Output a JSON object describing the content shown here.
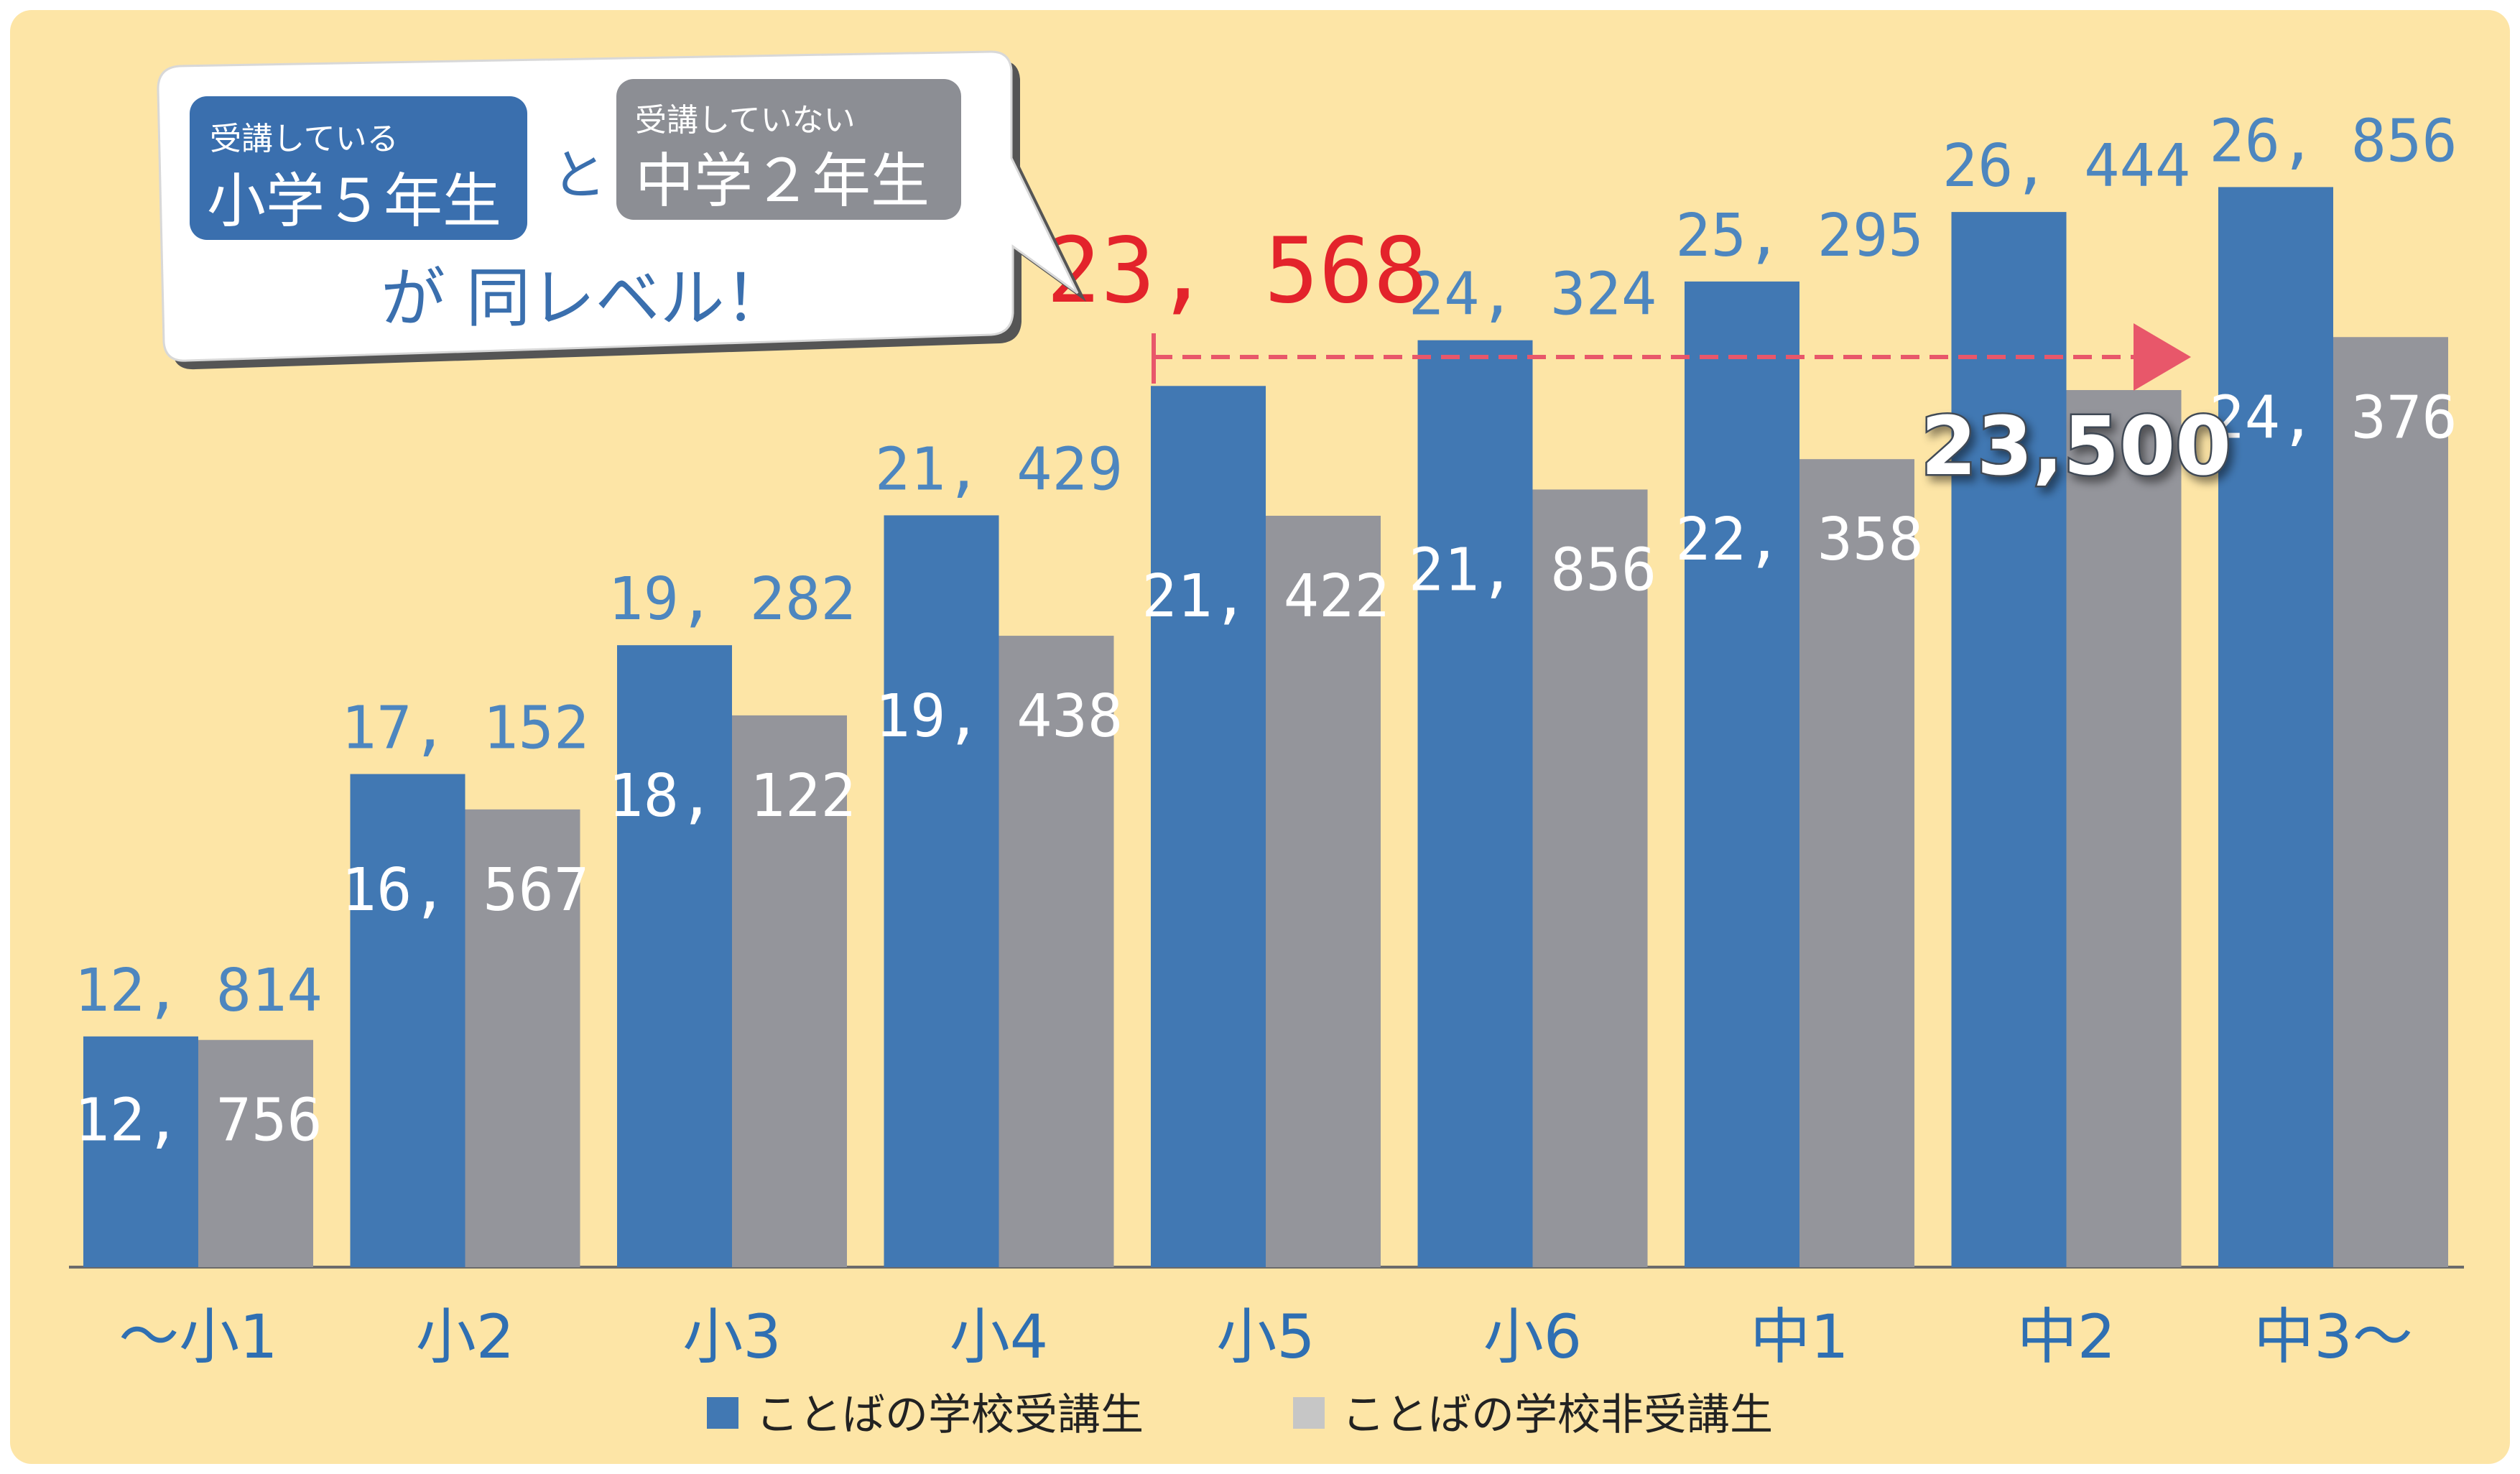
{
  "chart_data": {
    "type": "bar",
    "categories": [
      "〜小1",
      "小2",
      "小3",
      "小4",
      "小5",
      "小6",
      "中1",
      "中2",
      "中3〜"
    ],
    "series": [
      {
        "name": "ことばの学校受講生",
        "values": [
          12814,
          17152,
          19282,
          21429,
          23568,
          24324,
          25295,
          26444,
          26856
        ],
        "labels": [
          "12, 814",
          "17, 152",
          "19, 282",
          "21, 429",
          "",
          "24, 324",
          "25, 295",
          "26, 444",
          "26, 856"
        ]
      },
      {
        "name": "ことばの学校非受講生",
        "values": [
          12756,
          16567,
          18122,
          19438,
          21422,
          21856,
          22358,
          23500,
          24376
        ],
        "labels": [
          "12, 756",
          "16, 567",
          "18, 122",
          "19, 438",
          "21, 422",
          "21, 856",
          "22, 358",
          "",
          "24, 376"
        ]
      }
    ],
    "ylim": [
      9000,
      28500
    ],
    "colors": {
      "blue": "#4178b3",
      "gray": "#94959b",
      "background": "#fde5a6",
      "arrow": "#e8576a"
    },
    "legend_position": "bottom-center",
    "highlight": {
      "blue_label": "23, 568",
      "gray_label": "23,500",
      "from_category": "小5",
      "to_category": "中2"
    }
  },
  "callout": {
    "left_small": "受講している",
    "left_big": "小学５年生",
    "connector": "と",
    "right_small": "受講していない",
    "right_big": "中学２年生",
    "tail": "が 同レベル！"
  }
}
